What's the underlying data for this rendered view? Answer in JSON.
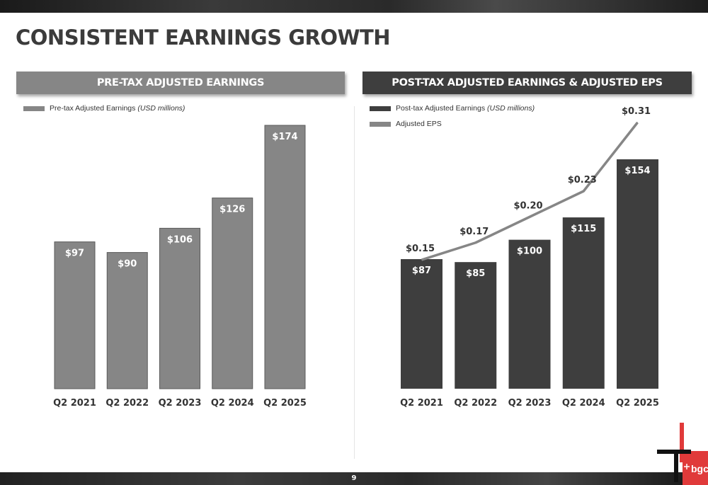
{
  "page": {
    "title": "CONSISTENT EARNINGS GROWTH",
    "page_number": "9"
  },
  "left_panel": {
    "header": "PRE-TAX ADJUSTED EARNINGS",
    "legend": {
      "label": "Pre-tax Adjusted Earnings",
      "unit": "(USD millions)"
    }
  },
  "right_panel": {
    "header": "POST-TAX ADJUSTED EARNINGS & ADJUSTED EPS",
    "legend_bar": {
      "label": "Post-tax Adjusted Earnings",
      "unit": "(USD millions)"
    },
    "legend_line": {
      "label": "Adjusted EPS"
    }
  },
  "logo": {
    "text": "bgc"
  },
  "chart_data": [
    {
      "type": "bar",
      "categories": [
        "Q2 2021",
        "Q2 2022",
        "Q2 2023",
        "Q2 2024",
        "Q2 2025"
      ],
      "series": [
        {
          "name": "Pre-tax Adjusted Earnings (USD millions)",
          "values": [
            97,
            90,
            106,
            126,
            174
          ],
          "labels": [
            "$97",
            "$90",
            "$106",
            "$126",
            "$174"
          ],
          "color": "#868686"
        }
      ],
      "ylim": [
        0,
        174
      ],
      "grid": false,
      "legend": "top-left"
    },
    {
      "type": "bar",
      "categories": [
        "Q2 2021",
        "Q2 2022",
        "Q2 2023",
        "Q2 2024",
        "Q2 2025"
      ],
      "series": [
        {
          "name": "Post-tax Adjusted Earnings (USD millions)",
          "type": "bar",
          "values": [
            87,
            85,
            100,
            115,
            154
          ],
          "labels": [
            "$87",
            "$85",
            "$100",
            "$115",
            "$154"
          ],
          "color": "#3e3e3e"
        },
        {
          "name": "Adjusted EPS",
          "type": "line",
          "values": [
            0.15,
            0.17,
            0.2,
            0.23,
            0.31
          ],
          "labels": [
            "$0.15",
            "$0.17",
            "$0.20",
            "$0.23",
            "$0.31"
          ],
          "color": "#868686"
        }
      ],
      "ylim": [
        0,
        154
      ],
      "grid": false,
      "legend": "top-left"
    }
  ]
}
